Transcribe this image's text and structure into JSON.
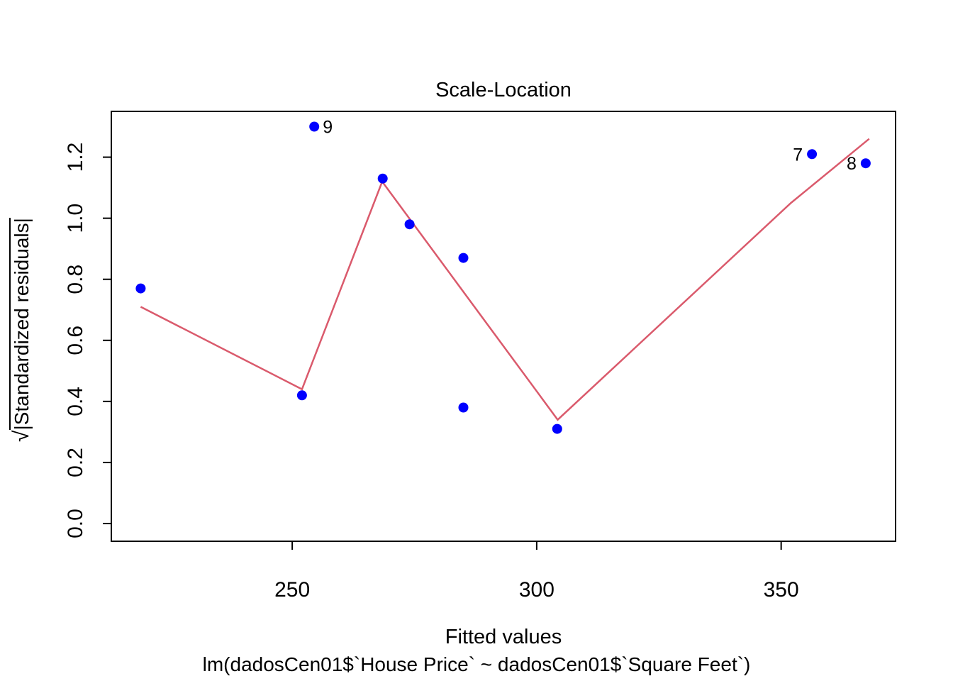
{
  "chart_data": {
    "type": "scatter",
    "title": "Scale-Location",
    "xlabel": "Fitted values",
    "ylabel": "sqrt(|Standardized residuals|)",
    "ylabel_radical": "√",
    "ylabel_radicand": "|Standardized residuals|",
    "sub_caption": "lm(dadosCen01$`House Price` ~ dadosCen01$`Square Feet`)",
    "xlim": [
      213.0,
      373.4
    ],
    "ylim": [
      -0.058,
      1.35
    ],
    "x_ticks": [
      250,
      300,
      350
    ],
    "x_tick_labels": [
      "250",
      "300",
      "350"
    ],
    "y_ticks": [
      0.0,
      0.2,
      0.4,
      0.6,
      0.8,
      1.0,
      1.2
    ],
    "y_tick_labels": [
      "0.0",
      "0.2",
      "0.4",
      "0.6",
      "0.8",
      "1.0",
      "1.2"
    ],
    "grid": false,
    "legend": null,
    "point_color": "#0000FF",
    "line_color": "#DA5A6C",
    "axis_color": "#000000",
    "points": [
      {
        "x": 219.0,
        "y": 0.77
      },
      {
        "x": 252.0,
        "y": 0.42
      },
      {
        "x": 254.5,
        "y": 1.3,
        "label": "9",
        "label_side": "right"
      },
      {
        "x": 268.5,
        "y": 1.13
      },
      {
        "x": 274.0,
        "y": 0.98
      },
      {
        "x": 285.0,
        "y": 0.87
      },
      {
        "x": 285.0,
        "y": 0.38
      },
      {
        "x": 304.2,
        "y": 0.31
      },
      {
        "x": 356.3,
        "y": 1.21,
        "label": "7",
        "label_side": "left"
      },
      {
        "x": 367.3,
        "y": 1.18,
        "label": "8",
        "label_side": "left"
      }
    ],
    "smooth_line": [
      {
        "x": 219.0,
        "y": 0.71
      },
      {
        "x": 252.0,
        "y": 0.44
      },
      {
        "x": 268.4,
        "y": 1.12
      },
      {
        "x": 304.3,
        "y": 0.34
      },
      {
        "x": 352.0,
        "y": 1.05
      },
      {
        "x": 368.0,
        "y": 1.26
      }
    ]
  }
}
